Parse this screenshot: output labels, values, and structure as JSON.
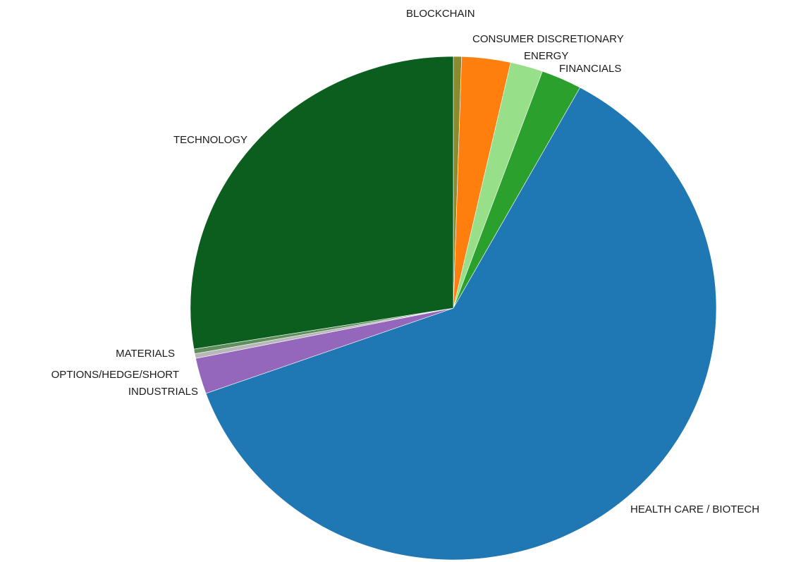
{
  "chart_data": {
    "type": "pie",
    "title": "",
    "start_angle_deg": 0,
    "direction": "clockwise",
    "slices": [
      {
        "label": "BLOCKCHAIN",
        "value": 0.5,
        "color": "#8a8a2e"
      },
      {
        "label": "CONSUMER DISCRETIONARY",
        "value": 3.0,
        "color": "#ff7f0e"
      },
      {
        "label": "ENERGY",
        "value": 2.0,
        "color": "#98df8a"
      },
      {
        "label": "FINANCIALS",
        "value": 2.5,
        "color": "#2ca02c"
      },
      {
        "label": "HEALTH CARE / BIOTECH",
        "value": 61.5,
        "color": "#1f77b4"
      },
      {
        "label": "INDUSTRIALS",
        "value": 2.3,
        "color": "#9467bd"
      },
      {
        "label": "OPTIONS/HEDGE/SHORT",
        "value": 0.3,
        "color": "#b8b8b8"
      },
      {
        "label": "MATERIALS",
        "value": 0.3,
        "color": "#5f8f5f"
      },
      {
        "label": "TECHNOLOGY",
        "value": 27.6,
        "color": "#0b5e1e"
      }
    ]
  }
}
